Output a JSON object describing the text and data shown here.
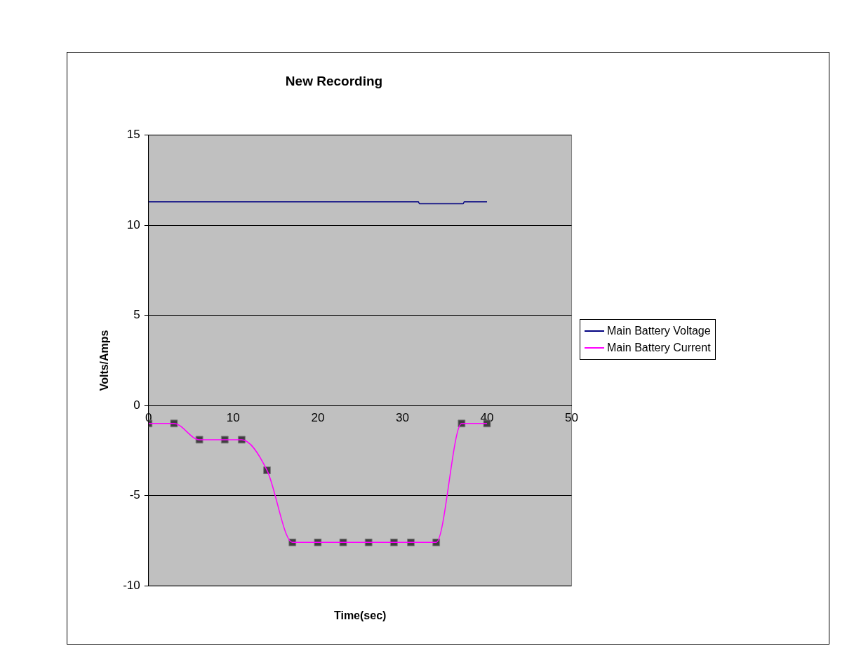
{
  "chart_data": {
    "type": "line",
    "title": "New Recording",
    "xlabel": "Time(sec)",
    "ylabel": "Volts/Amps",
    "xlim": [
      0,
      50
    ],
    "xticks": [
      0,
      10,
      20,
      30,
      40,
      50
    ],
    "ylim": [
      -10,
      15
    ],
    "yticks": [
      -10,
      -5,
      0,
      5,
      10,
      15
    ],
    "grid": "y",
    "legend": "right",
    "series": [
      {
        "name": "Main Battery Voltage",
        "color": "#000080",
        "type": "line",
        "marker": "none",
        "x": [
          0,
          31.9,
          32,
          37.2,
          37.3,
          40
        ],
        "values": [
          11.3,
          11.3,
          11.2,
          11.2,
          11.3,
          11.3
        ]
      },
      {
        "name": "Main Battery Current",
        "color": "#ff00ff",
        "type": "line",
        "marker": "none",
        "x": [
          0,
          3,
          6,
          9,
          11,
          14,
          17,
          20,
          23,
          26,
          29,
          31,
          34,
          37,
          40
        ],
        "values": [
          -1,
          -1,
          -1.9,
          -1.9,
          -1.9,
          -3.6,
          -7.6,
          -7.6,
          -7.6,
          -7.6,
          -7.6,
          -7.6,
          -7.6,
          -1,
          -1
        ]
      },
      {
        "color": "#404040",
        "type": "scatter",
        "marker": "square",
        "x": [
          0,
          3,
          6,
          9,
          11,
          14,
          17,
          20,
          23,
          26,
          29,
          31,
          34,
          37,
          40
        ],
        "values": [
          -1,
          -1,
          -1.9,
          -1.9,
          -1.9,
          -3.6,
          -7.6,
          -7.6,
          -7.6,
          -7.6,
          -7.6,
          -7.6,
          -7.6,
          -1,
          -1
        ]
      }
    ]
  }
}
